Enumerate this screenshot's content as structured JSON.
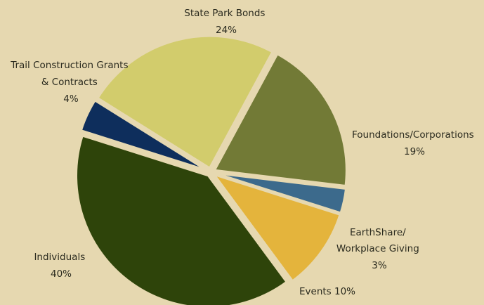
{
  "chart_data": {
    "type": "pie",
    "slices": [
      {
        "label_lines": [
          "State Park Bonds"
        ],
        "pct_label": "24%",
        "value": 24,
        "color": "#d2cc6c"
      },
      {
        "label_lines": [
          "Foundations/Corporations"
        ],
        "pct_label": "19%",
        "value": 19,
        "color": "#727a36"
      },
      {
        "label_lines": [
          "EarthShare/",
          "Workplace Giving"
        ],
        "pct_label": "3%",
        "value": 3,
        "color": "#3c6a8c"
      },
      {
        "label_lines": [
          "Events 10%"
        ],
        "pct_label": "",
        "value": 10,
        "color": "#e4b43c"
      },
      {
        "label_lines": [
          "Individuals"
        ],
        "pct_label": "40%",
        "value": 40,
        "color": "#2e440a"
      },
      {
        "label_lines": [
          "Trail Construction Grants",
          "& Contracts"
        ],
        "pct_label": "4%",
        "value": 4,
        "color": "#0e2e5c"
      }
    ]
  }
}
